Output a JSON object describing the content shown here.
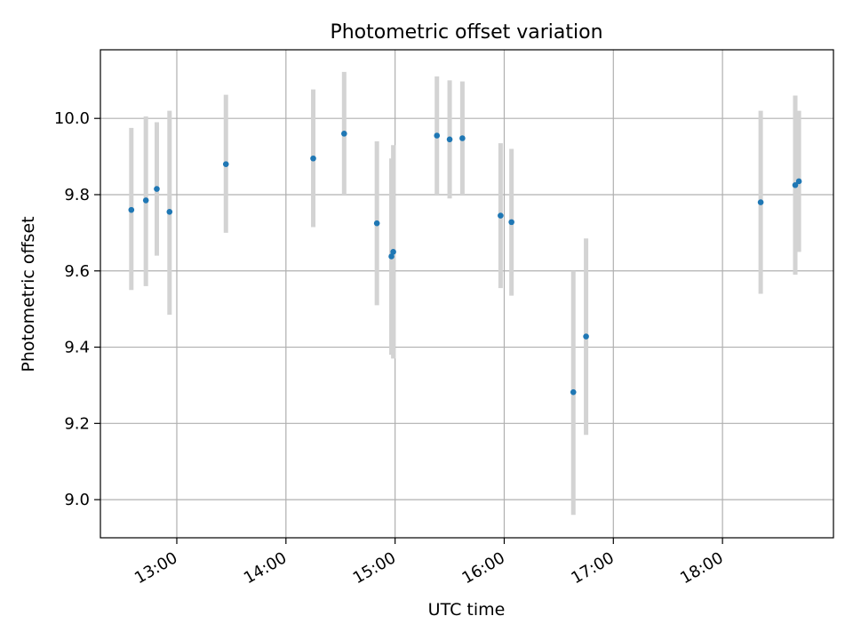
{
  "chart_data": {
    "type": "scatter",
    "title": "Photometric offset variation",
    "xlabel": "UTC time",
    "ylabel": "Photometric offset",
    "x_unit": "UTC time (HH:MM)",
    "x_ticks": [
      "13:00",
      "14:00",
      "15:00",
      "16:00",
      "17:00",
      "18:00"
    ],
    "y_ticks": [
      "9.0",
      "9.2",
      "9.4",
      "9.6",
      "9.8",
      "10.0"
    ],
    "xlim": [
      "12:18",
      "19:01"
    ],
    "ylim": [
      8.9,
      10.18
    ],
    "grid": true,
    "legend": "none",
    "point_color": "#1f77b4",
    "errorbar_color": "#d3d3d3",
    "points": [
      {
        "time": "12:35",
        "y": 9.76,
        "err_low": 9.55,
        "err_high": 9.975
      },
      {
        "time": "12:43",
        "y": 9.785,
        "err_low": 9.56,
        "err_high": 10.005
      },
      {
        "time": "12:49",
        "y": 9.815,
        "err_low": 9.64,
        "err_high": 9.99
      },
      {
        "time": "12:56",
        "y": 9.755,
        "err_low": 9.485,
        "err_high": 10.02
      },
      {
        "time": "13:27",
        "y": 9.88,
        "err_low": 9.7,
        "err_high": 10.062
      },
      {
        "time": "14:15",
        "y": 9.895,
        "err_low": 9.715,
        "err_high": 10.076
      },
      {
        "time": "14:32",
        "y": 9.96,
        "err_low": 9.8,
        "err_high": 10.122
      },
      {
        "time": "14:50",
        "y": 9.725,
        "err_low": 9.51,
        "err_high": 9.94
      },
      {
        "time": "14:58",
        "y": 9.638,
        "err_low": 9.38,
        "err_high": 9.895
      },
      {
        "time": "14:59",
        "y": 9.65,
        "err_low": 9.37,
        "err_high": 9.93
      },
      {
        "time": "15:23",
        "y": 9.955,
        "err_low": 9.8,
        "err_high": 10.11
      },
      {
        "time": "15:30",
        "y": 9.945,
        "err_low": 9.79,
        "err_high": 10.1
      },
      {
        "time": "15:37",
        "y": 9.948,
        "err_low": 9.8,
        "err_high": 10.097
      },
      {
        "time": "15:58",
        "y": 9.745,
        "err_low": 9.555,
        "err_high": 9.935
      },
      {
        "time": "16:04",
        "y": 9.728,
        "err_low": 9.535,
        "err_high": 9.92
      },
      {
        "time": "16:38",
        "y": 9.282,
        "err_low": 8.96,
        "err_high": 9.6
      },
      {
        "time": "16:45",
        "y": 9.428,
        "err_low": 9.17,
        "err_high": 9.685
      },
      {
        "time": "18:21",
        "y": 9.78,
        "err_low": 9.54,
        "err_high": 10.02
      },
      {
        "time": "18:40",
        "y": 9.825,
        "err_low": 9.59,
        "err_high": 10.06
      },
      {
        "time": "18:42",
        "y": 9.835,
        "err_low": 9.65,
        "err_high": 10.02
      }
    ]
  }
}
